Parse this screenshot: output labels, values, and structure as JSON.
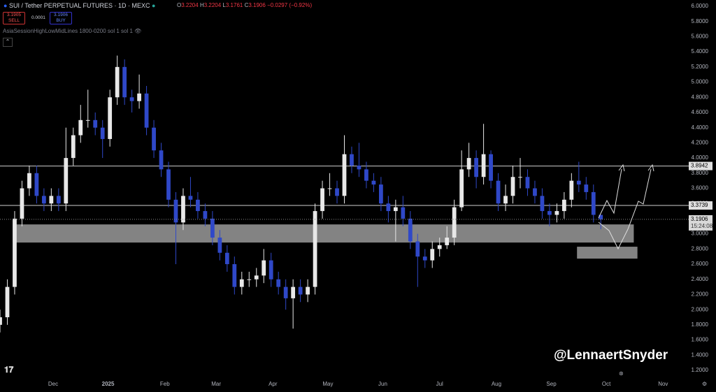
{
  "header": {
    "symbol": "SUI / Tether PERPETUAL FUTURES · 1D · MEXC",
    "ohlc": [
      {
        "key": "O",
        "value": "3.2204"
      },
      {
        "key": "H",
        "value": "3.2204"
      },
      {
        "key": "L",
        "value": "3.1761"
      },
      {
        "key": "C",
        "value": "3.1906"
      }
    ],
    "change": "−0.0297 (−0.92%)",
    "sell_price": "3.1905",
    "sell": "SELL",
    "spread": "0.0001",
    "buy_price": "3.1906",
    "buy": "BUY",
    "indicator": "AsiaSessionHighLowMidLines 1800-0200 sol 1 sol 1"
  },
  "watermark": "@LennaertSnyder",
  "chart_data": {
    "type": "candlestick",
    "up_color": "#e8e8e8",
    "down_color": "#2f48c8",
    "x": [
      0,
      4,
      8,
      12,
      16,
      20,
      24,
      28,
      32,
      36,
      40,
      44,
      48,
      52,
      56,
      60,
      64,
      68,
      72,
      76,
      80,
      84,
      88,
      92,
      96,
      100,
      104,
      108,
      112,
      116,
      120,
      124,
      128,
      132,
      136,
      140,
      144,
      148,
      152,
      156,
      160,
      164,
      168,
      172,
      176,
      180,
      184,
      188,
      192,
      196,
      200,
      204,
      208,
      212,
      216,
      220,
      224,
      228,
      232,
      236,
      240,
      244,
      248,
      252,
      256,
      260,
      264,
      268,
      272,
      276,
      280,
      284,
      288,
      292,
      296,
      300,
      304,
      308,
      312,
      316,
      320,
      324,
      328
    ],
    "open": [
      1.8,
      1.9,
      2.3,
      3.2,
      3.6,
      3.8,
      3.5,
      3.4,
      3.5,
      3.4,
      4.0,
      4.3,
      4.5,
      4.5,
      4.4,
      4.25,
      4.8,
      5.2,
      4.8,
      4.75,
      4.85,
      4.4,
      4.1,
      3.85,
      3.45,
      3.15,
      3.5,
      3.45,
      3.3,
      3.2,
      2.95,
      2.75,
      2.6,
      2.3,
      2.4,
      2.4,
      2.45,
      2.65,
      2.4,
      2.3,
      2.15,
      2.3,
      2.2,
      2.3,
      3.3,
      3.6,
      3.6,
      3.5,
      4.05,
      3.9,
      3.85,
      3.7,
      3.65,
      3.4,
      3.3,
      3.35,
      3.2,
      2.9,
      2.7,
      2.65,
      2.8,
      2.85,
      2.95,
      3.35,
      3.85,
      4.0,
      3.75,
      4.05,
      3.7,
      3.4,
      3.5,
      3.75,
      3.75,
      3.6,
      3.5,
      3.3,
      3.25,
      3.3,
      3.45,
      3.7,
      3.65,
      3.55,
      3.25
    ],
    "high": [
      2.0,
      2.4,
      3.3,
      3.7,
      3.9,
      3.9,
      3.6,
      3.6,
      3.6,
      4.4,
      4.4,
      4.7,
      4.9,
      4.6,
      4.5,
      4.9,
      5.35,
      5.3,
      4.9,
      5.1,
      4.95,
      4.5,
      4.2,
      3.95,
      3.55,
      3.6,
      3.75,
      3.55,
      3.4,
      3.3,
      3.05,
      2.85,
      2.7,
      2.5,
      2.5,
      2.55,
      2.8,
      2.75,
      2.5,
      2.4,
      2.4,
      2.4,
      2.4,
      3.4,
      3.7,
      3.8,
      3.7,
      4.3,
      4.15,
      4.2,
      3.95,
      3.8,
      3.75,
      3.5,
      3.45,
      3.5,
      3.3,
      3.0,
      2.8,
      2.9,
      2.95,
      3.1,
      3.45,
      4.1,
      4.2,
      4.1,
      4.45,
      4.1,
      3.8,
      3.65,
      3.9,
      4.0,
      3.85,
      3.7,
      3.6,
      3.4,
      3.4,
      3.55,
      3.8,
      3.95,
      3.75,
      3.65,
      3.25
    ],
    "low": [
      1.7,
      1.8,
      2.2,
      3.1,
      3.5,
      3.4,
      3.3,
      3.3,
      3.3,
      3.3,
      3.9,
      4.2,
      4.4,
      4.3,
      4.0,
      4.15,
      4.7,
      4.7,
      4.6,
      4.65,
      4.3,
      4.0,
      3.75,
      3.35,
      2.6,
      3.05,
      3.35,
      3.2,
      3.1,
      2.85,
      2.65,
      2.5,
      2.2,
      2.2,
      2.3,
      2.3,
      2.35,
      2.3,
      2.2,
      2.0,
      1.75,
      2.1,
      2.1,
      2.2,
      3.2,
      3.5,
      3.4,
      3.4,
      3.8,
      3.75,
      3.6,
      3.55,
      3.3,
      3.15,
      2.9,
      3.1,
      2.8,
      2.3,
      2.55,
      2.55,
      2.7,
      2.8,
      2.85,
      3.3,
      3.75,
      3.6,
      3.65,
      3.6,
      3.3,
      3.3,
      3.4,
      3.6,
      3.5,
      3.4,
      3.2,
      3.1,
      3.15,
      3.2,
      3.35,
      3.55,
      3.45,
      3.15,
      3.06
    ],
    "close": [
      1.9,
      2.3,
      3.2,
      3.6,
      3.8,
      3.5,
      3.4,
      3.5,
      3.4,
      4.0,
      4.3,
      4.5,
      4.5,
      4.4,
      4.25,
      4.8,
      5.2,
      4.8,
      4.75,
      4.85,
      4.4,
      4.1,
      3.85,
      3.45,
      3.15,
      3.5,
      3.45,
      3.3,
      3.2,
      2.95,
      2.75,
      2.6,
      2.3,
      2.4,
      2.4,
      2.45,
      2.65,
      2.4,
      2.3,
      2.15,
      2.3,
      2.2,
      2.3,
      3.3,
      3.6,
      3.6,
      3.5,
      4.05,
      3.9,
      3.85,
      3.7,
      3.65,
      3.4,
      3.3,
      3.35,
      3.2,
      2.9,
      2.7,
      2.65,
      2.8,
      2.85,
      2.95,
      3.35,
      3.85,
      4.0,
      3.75,
      4.05,
      3.7,
      3.4,
      3.5,
      3.75,
      3.75,
      3.6,
      3.5,
      3.3,
      3.25,
      3.3,
      3.45,
      3.7,
      3.65,
      3.55,
      3.25,
      3.19
    ],
    "xlim": [
      0,
      376
    ],
    "xticks": [
      {
        "value": 29,
        "label": "Dec"
      },
      {
        "value": 59,
        "label": "2025"
      },
      {
        "value": 90,
        "label": "Feb"
      },
      {
        "value": 118,
        "label": "Mar"
      },
      {
        "value": 149,
        "label": "Apr"
      },
      {
        "value": 179,
        "label": "May"
      },
      {
        "value": 209,
        "label": "Jun"
      },
      {
        "value": 240,
        "label": "Jul"
      },
      {
        "value": 271,
        "label": "Aug"
      },
      {
        "value": 301,
        "label": "Sep"
      },
      {
        "value": 331,
        "label": "Oct"
      },
      {
        "value": 362,
        "label": "Nov"
      }
    ],
    "ylim": [
      1.2,
      6.0
    ],
    "yticks": [
      {
        "value": 1.2,
        "label": "1.2000"
      },
      {
        "value": 1.4,
        "label": "1.4000"
      },
      {
        "value": 1.6,
        "label": "1.6000"
      },
      {
        "value": 1.8,
        "label": "1.8000"
      },
      {
        "value": 2.0,
        "label": "2.0000"
      },
      {
        "value": 2.2,
        "label": "2.2000"
      },
      {
        "value": 2.4,
        "label": "2.4000"
      },
      {
        "value": 2.6,
        "label": "2.6000"
      },
      {
        "value": 2.8,
        "label": "2.8000"
      },
      {
        "value": 3.0,
        "label": "3.0000"
      },
      {
        "value": 3.2,
        "label": "3.2000"
      },
      {
        "value": 3.4,
        "label": "3.4000"
      },
      {
        "value": 3.6,
        "label": "3.6000"
      },
      {
        "value": 3.8,
        "label": "3.8000"
      },
      {
        "value": 4.0,
        "label": "4.0000"
      },
      {
        "value": 4.2,
        "label": "4.2000"
      },
      {
        "value": 4.4,
        "label": "4.4000"
      },
      {
        "value": 4.6,
        "label": "4.6000"
      },
      {
        "value": 4.8,
        "label": "4.8000"
      },
      {
        "value": 5.0,
        "label": "5.0000"
      },
      {
        "value": 5.2,
        "label": "5.2000"
      },
      {
        "value": 5.4,
        "label": "5.4000"
      },
      {
        "value": 5.6,
        "label": "5.6000"
      },
      {
        "value": 5.8,
        "label": "5.8000"
      },
      {
        "value": 6.0,
        "label": "6.0000"
      }
    ],
    "levels": [
      3.8942,
      3.3739
    ],
    "last_price": 3.1906,
    "countdown": "15:24:08",
    "zones": [
      {
        "x": [
          7,
          346
        ],
        "y": [
          2.885,
          3.124
        ]
      },
      {
        "x": [
          315,
          348
        ],
        "y": [
          2.673,
          2.83
        ]
      }
    ]
  }
}
